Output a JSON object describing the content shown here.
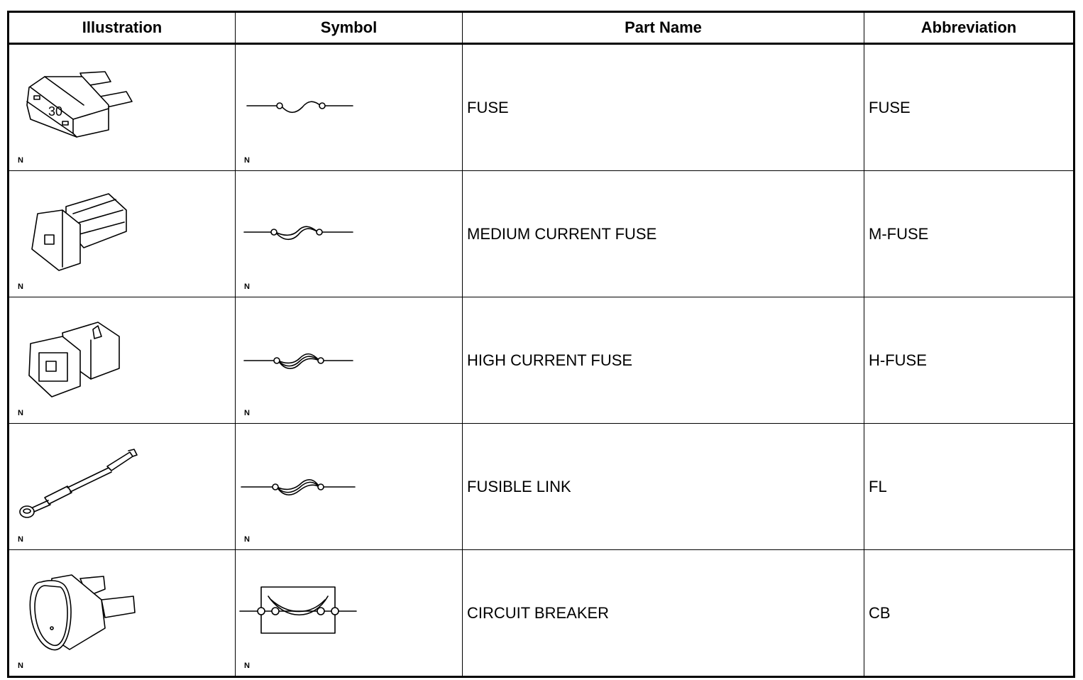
{
  "headers": {
    "illustration": "Illustration",
    "symbol": "Symbol",
    "part_name": "Part Name",
    "abbreviation": "Abbreviation"
  },
  "rows": [
    {
      "part_name": "FUSE",
      "abbreviation": "FUSE",
      "illustration_label": "N",
      "symbol_label": "N",
      "illustration": "blade-fuse-icon",
      "symbol": "fuse-symbol-icon"
    },
    {
      "part_name": "MEDIUM CURRENT FUSE",
      "abbreviation": "M-FUSE",
      "illustration_label": "N",
      "symbol_label": "N",
      "illustration": "medium-current-fuse-icon",
      "symbol": "medium-fuse-symbol-icon"
    },
    {
      "part_name": "HIGH CURRENT FUSE",
      "abbreviation": "H-FUSE",
      "illustration_label": "N",
      "symbol_label": "N",
      "illustration": "high-current-fuse-icon",
      "symbol": "high-fuse-symbol-icon"
    },
    {
      "part_name": "FUSIBLE LINK",
      "abbreviation": "FL",
      "illustration_label": "N",
      "symbol_label": "N",
      "illustration": "fusible-link-icon",
      "symbol": "fusible-link-symbol-icon"
    },
    {
      "part_name": "CIRCUIT BREAKER",
      "abbreviation": "CB",
      "illustration_label": "N",
      "symbol_label": "N",
      "illustration": "circuit-breaker-icon",
      "symbol": "circuit-breaker-symbol-icon"
    }
  ],
  "fuse_rating_text": "30"
}
